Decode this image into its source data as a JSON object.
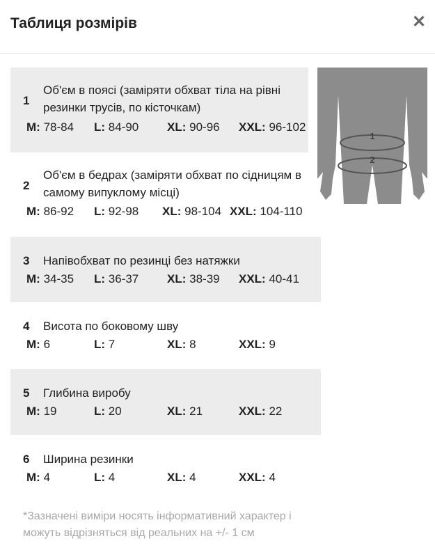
{
  "header": {
    "title": "Таблиця розмірів",
    "close_icon": "close-icon"
  },
  "rows": [
    {
      "num": "1",
      "desc": "Об'єм в поясі (заміряти обхват тіла на рівні резинки трусів, по кісточкам)",
      "sizes": [
        {
          "k": "M:",
          "v": "78-84"
        },
        {
          "k": "L:",
          "v": "84-90"
        },
        {
          "k": "XL:",
          "v": "90-96"
        },
        {
          "k": "XXL:",
          "v": "96-102"
        }
      ]
    },
    {
      "num": "2",
      "desc": "Об'єм в бедрах (заміряти обхват по сідницям в самому випуклому місці)",
      "sizes": [
        {
          "k": "M:",
          "v": "86-92"
        },
        {
          "k": "L:",
          "v": "92-98"
        },
        {
          "k": "XL:",
          "v": "98-104"
        },
        {
          "k": "XXL:",
          "v": "104-110"
        }
      ]
    },
    {
      "num": "3",
      "desc": "Напівобхват по резинці без натяжки",
      "sizes": [
        {
          "k": "M:",
          "v": "34-35"
        },
        {
          "k": "L:",
          "v": "36-37"
        },
        {
          "k": "XL:",
          "v": "38-39"
        },
        {
          "k": "XXL:",
          "v": "40-41"
        }
      ]
    },
    {
      "num": "4",
      "desc": "Висота по боковому шву",
      "sizes": [
        {
          "k": "M:",
          "v": "6"
        },
        {
          "k": "L:",
          "v": "7"
        },
        {
          "k": "XL:",
          "v": "8"
        },
        {
          "k": "XXL:",
          "v": "9"
        }
      ]
    },
    {
      "num": "5",
      "desc": "Глибина виробу",
      "sizes": [
        {
          "k": "M:",
          "v": "19"
        },
        {
          "k": "L:",
          "v": "20"
        },
        {
          "k": "XL:",
          "v": "21"
        },
        {
          "k": "XXL:",
          "v": "22"
        }
      ]
    },
    {
      "num": "6",
      "desc": "Ширина резинки",
      "sizes": [
        {
          "k": "M:",
          "v": "4"
        },
        {
          "k": "L:",
          "v": "4"
        },
        {
          "k": "XL:",
          "v": "4"
        },
        {
          "k": "XXL:",
          "v": "4"
        }
      ]
    }
  ],
  "figure": {
    "labels": [
      "1",
      "2"
    ]
  },
  "note": "*Зазначені виміри носять інформативний характер і можуть відрізняться від реальних на +/- 1 см"
}
